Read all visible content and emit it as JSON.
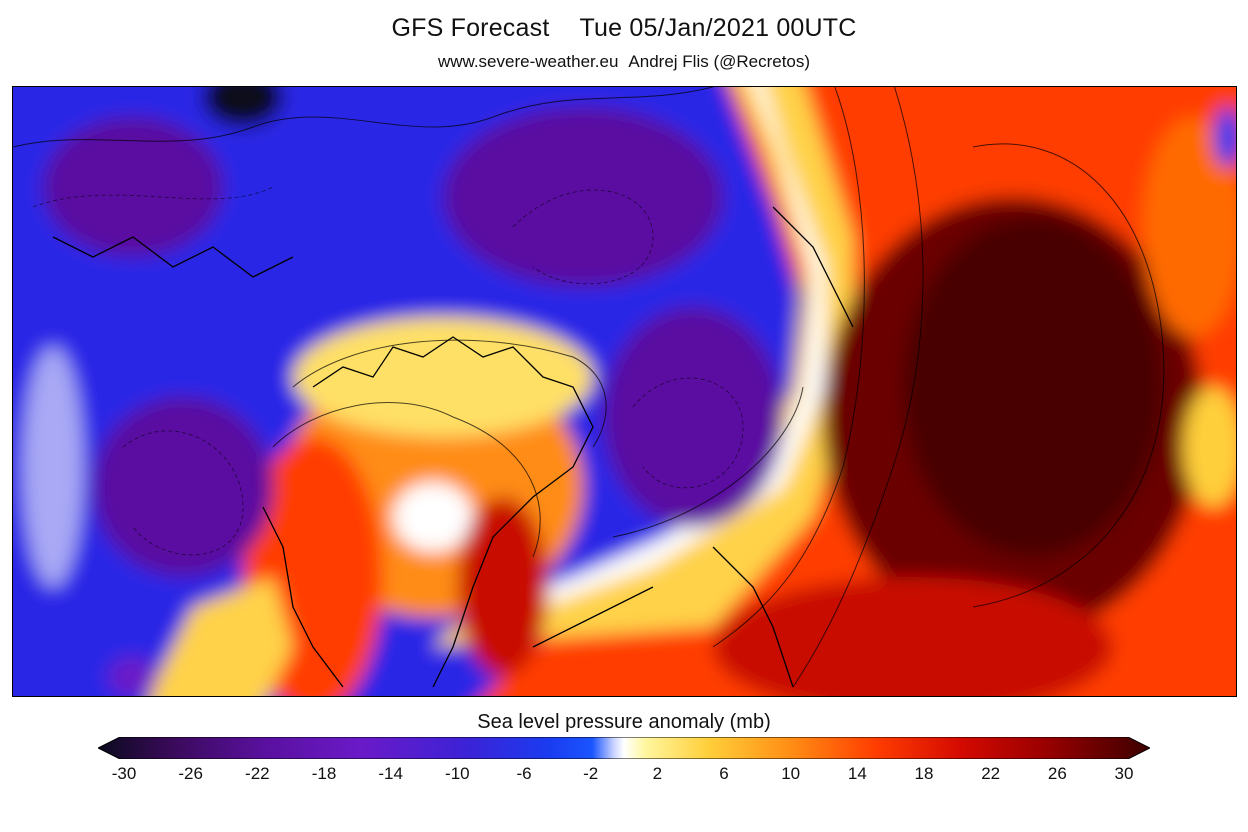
{
  "header": {
    "title_left": "GFS Forecast",
    "title_right": "Tue 05/Jan/2021 00UTC",
    "credit_url": "www.severe-weather.eu",
    "credit_author": "Andrej Flis (@Recretos)"
  },
  "map": {
    "field": "sea level pressure anomaly",
    "units": "mb",
    "palette_min": -30,
    "palette_max": 30,
    "colors": {
      "m30": "#0a0a1e",
      "m26": "#3a0a5a",
      "m22": "#5a10a0",
      "m18": "#6a1ac8",
      "m14": "#3c22d6",
      "m10": "#2a28e6",
      "m6": "#1a3cf0",
      "m2": "#c8d2ff",
      "zero": "#ffffff",
      "p2": "#fff6a0",
      "p6": "#ffcf3a",
      "p10": "#ff8c14",
      "p14": "#ff3c00",
      "p18": "#d40a00",
      "p22": "#9a0000",
      "p26": "#6a0000",
      "p30": "#3c0000"
    }
  },
  "colorbar": {
    "title": "Sea level pressure anomaly (mb)",
    "ticks": [
      "-30",
      "-26",
      "-22",
      "-18",
      "-14",
      "-10",
      "-6",
      "-2",
      "2",
      "6",
      "10",
      "14",
      "18",
      "22",
      "26",
      "30"
    ]
  }
}
